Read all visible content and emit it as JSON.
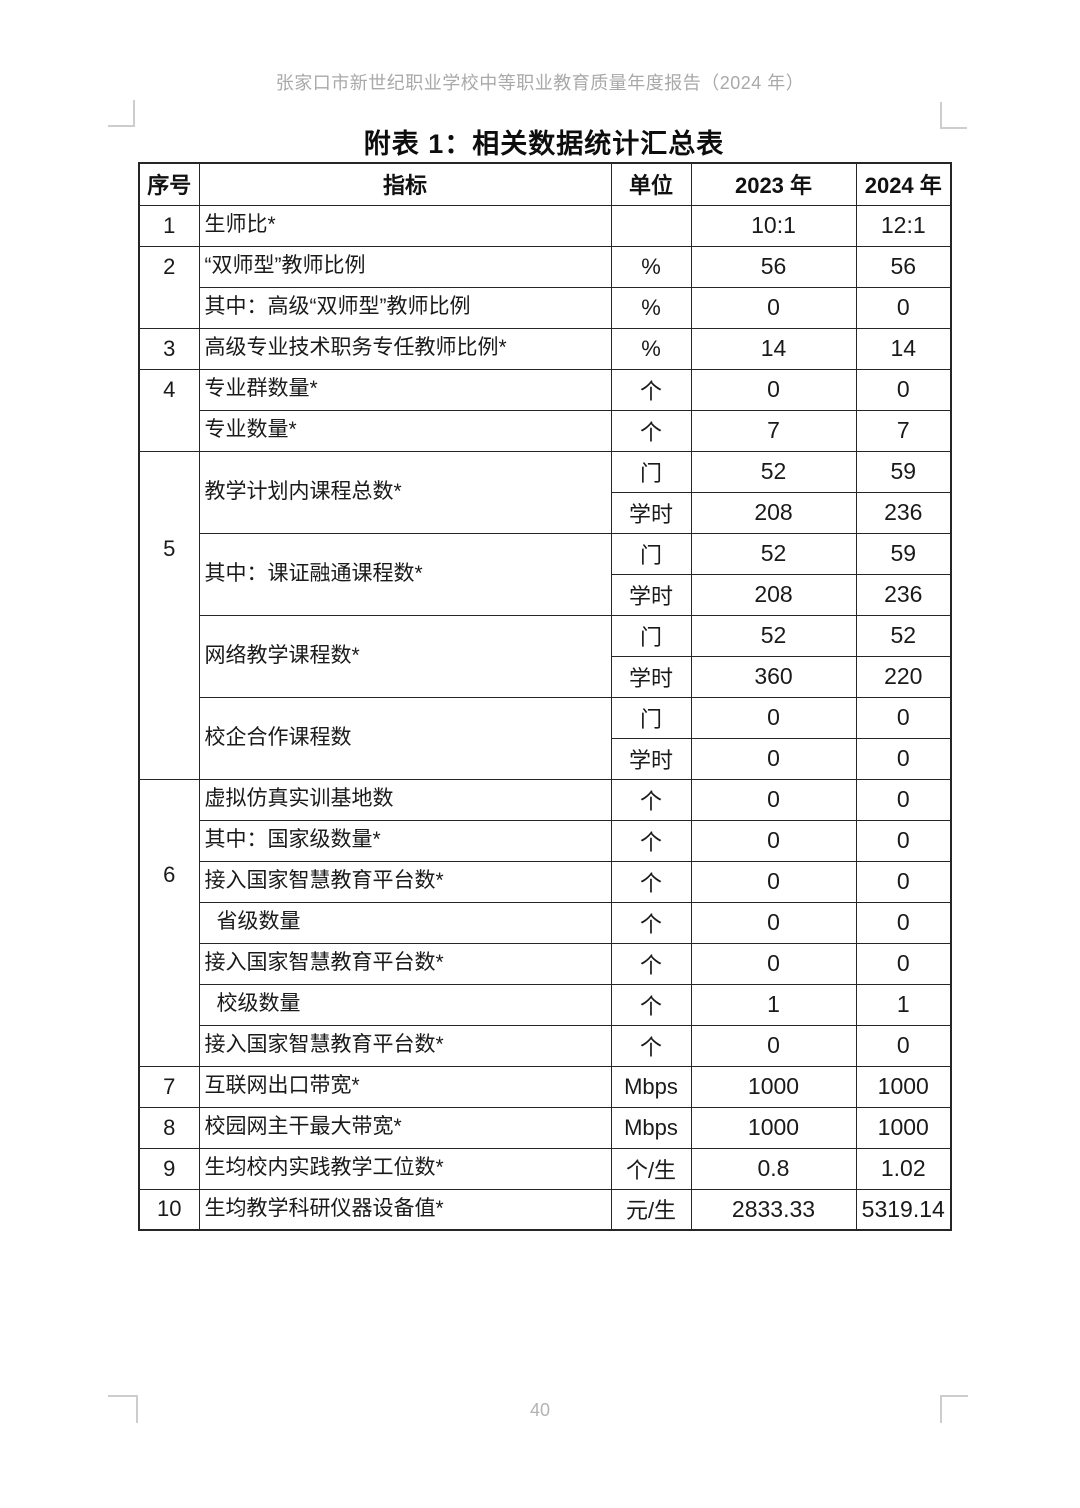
{
  "page": {
    "header": "张家口市新世纪职业学校中等职业教育质量年度报告（2024 年）",
    "title": "附表 1：相关数据统计汇总表",
    "page_number": "40"
  },
  "colors": {
    "table_border": "#262626",
    "body_text": "#1a1a1a",
    "header_text": "#a9a9a9",
    "page_number_text": "#b3b3b3",
    "crop_mark": "#cdcdcd"
  },
  "table": {
    "columns": [
      "序号",
      "指标",
      "单位",
      "2023 年",
      "2024 年"
    ],
    "groups": [
      {
        "num": "1",
        "items": [
          {
            "label": "生师比*",
            "units": [
              {
                "unit": "",
                "y2023": "10:1",
                "y2024": "12:1"
              }
            ]
          }
        ]
      },
      {
        "num": "2",
        "items": [
          {
            "label": "“双师型”教师比例",
            "units": [
              {
                "unit": "%",
                "y2023": "56",
                "y2024": "56"
              }
            ]
          },
          {
            "label": "其中：高级“双师型”教师比例",
            "units": [
              {
                "unit": "%",
                "y2023": "0",
                "y2024": "0"
              }
            ]
          }
        ]
      },
      {
        "num": "3",
        "items": [
          {
            "label": "高级专业技术职务专任教师比例*",
            "units": [
              {
                "unit": "%",
                "y2023": "14",
                "y2024": "14"
              }
            ]
          }
        ]
      },
      {
        "num": "4",
        "items": [
          {
            "label": "专业群数量*",
            "units": [
              {
                "unit": "个",
                "y2023": "0",
                "y2024": "0"
              }
            ]
          },
          {
            "label": "专业数量*",
            "units": [
              {
                "unit": "个",
                "y2023": "7",
                "y2024": "7"
              }
            ]
          }
        ]
      },
      {
        "num": "5",
        "items": [
          {
            "label": "教学计划内课程总数*",
            "units": [
              {
                "unit": "门",
                "y2023": "52",
                "y2024": "59"
              },
              {
                "unit": "学时",
                "y2023": "208",
                "y2024": "236"
              }
            ]
          },
          {
            "label": "其中：课证融通课程数*",
            "units": [
              {
                "unit": "门",
                "y2023": "52",
                "y2024": "59"
              },
              {
                "unit": "学时",
                "y2023": "208",
                "y2024": "236"
              }
            ]
          },
          {
            "label": "网络教学课程数*",
            "units": [
              {
                "unit": "门",
                "y2023": "52",
                "y2024": "52"
              },
              {
                "unit": "学时",
                "y2023": "360",
                "y2024": "220"
              }
            ]
          },
          {
            "label": "校企合作课程数",
            "units": [
              {
                "unit": "门",
                "y2023": "0",
                "y2024": "0"
              },
              {
                "unit": "学时",
                "y2023": "0",
                "y2024": "0"
              }
            ]
          }
        ]
      },
      {
        "num": "6",
        "items": [
          {
            "label": "虚拟仿真实训基地数",
            "units": [
              {
                "unit": "个",
                "y2023": "0",
                "y2024": "0"
              }
            ]
          },
          {
            "label": "其中：国家级数量*",
            "units": [
              {
                "unit": "个",
                "y2023": "0",
                "y2024": "0"
              }
            ]
          },
          {
            "label": "接入国家智慧教育平台数*",
            "units": [
              {
                "unit": "个",
                "y2023": "0",
                "y2024": "0"
              }
            ]
          },
          {
            "label": "省级数量",
            "indent": true,
            "units": [
              {
                "unit": "个",
                "y2023": "0",
                "y2024": "0"
              }
            ]
          },
          {
            "label": "接入国家智慧教育平台数*",
            "units": [
              {
                "unit": "个",
                "y2023": "0",
                "y2024": "0"
              }
            ]
          },
          {
            "label": "校级数量",
            "indent": true,
            "units": [
              {
                "unit": "个",
                "y2023": "1",
                "y2024": "1"
              }
            ]
          },
          {
            "label": "接入国家智慧教育平台数*",
            "units": [
              {
                "unit": "个",
                "y2023": "0",
                "y2024": "0"
              }
            ]
          }
        ]
      },
      {
        "num": "7",
        "items": [
          {
            "label": "互联网出口带宽*",
            "units": [
              {
                "unit": "Mbps",
                "y2023": "1000",
                "y2024": "1000"
              }
            ]
          }
        ]
      },
      {
        "num": "8",
        "items": [
          {
            "label": "校园网主干最大带宽*",
            "units": [
              {
                "unit": "Mbps",
                "y2023": "1000",
                "y2024": "1000"
              }
            ]
          }
        ]
      },
      {
        "num": "9",
        "items": [
          {
            "label": "生均校内实践教学工位数*",
            "units": [
              {
                "unit": "个/生",
                "y2023": "0.8",
                "y2024": "1.02"
              }
            ]
          }
        ]
      },
      {
        "num": "10",
        "items": [
          {
            "label": "生均教学科研仪器设备值*",
            "units": [
              {
                "unit": "元/生",
                "y2023": "2833.33",
                "y2024": "5319.14"
              }
            ]
          }
        ]
      }
    ]
  }
}
